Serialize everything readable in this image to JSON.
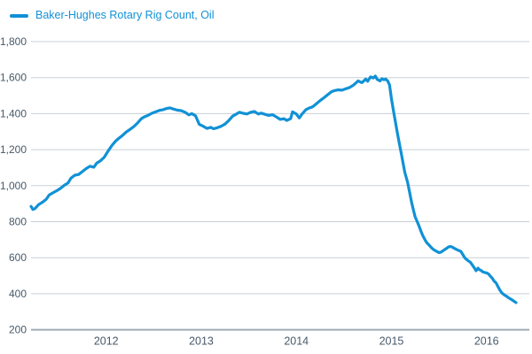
{
  "colors": {
    "series_blue": "#1191d6",
    "gridline": "#c9d0d6",
    "axis_line": "#9fabb4",
    "axis_text": "#47596a",
    "background": "#ffffff"
  },
  "legend": {
    "label": "Baker-Hughes Rotary Rig Count, Oil"
  },
  "chart_data": {
    "type": "line",
    "title": "Baker-Hughes Rotary Rig Count, Oil",
    "xlabel": "",
    "ylabel": "",
    "grid": "horizontal",
    "legend_position": "top-left",
    "x_ticks": [
      2012,
      2013,
      2014,
      2015,
      2016
    ],
    "y_ticks": [
      200,
      400,
      600,
      800,
      1000,
      1200,
      1400,
      1600,
      1800
    ],
    "ylim": [
      200,
      1800
    ],
    "xlim": [
      2011.21,
      2016.45
    ],
    "series": [
      {
        "name": "Baker-Hughes Rotary Rig Count, Oil",
        "color": "#1191d6",
        "points": [
          [
            2011.21,
            885
          ],
          [
            2011.23,
            868
          ],
          [
            2011.25,
            872
          ],
          [
            2011.29,
            895
          ],
          [
            2011.33,
            908
          ],
          [
            2011.37,
            925
          ],
          [
            2011.4,
            948
          ],
          [
            2011.44,
            960
          ],
          [
            2011.48,
            972
          ],
          [
            2011.52,
            985
          ],
          [
            2011.56,
            1002
          ],
          [
            2011.6,
            1015
          ],
          [
            2011.63,
            1042
          ],
          [
            2011.67,
            1058
          ],
          [
            2011.71,
            1062
          ],
          [
            2011.75,
            1078
          ],
          [
            2011.79,
            1095
          ],
          [
            2011.83,
            1108
          ],
          [
            2011.87,
            1102
          ],
          [
            2011.9,
            1125
          ],
          [
            2011.94,
            1138
          ],
          [
            2011.98,
            1158
          ],
          [
            2012.02,
            1192
          ],
          [
            2012.06,
            1223
          ],
          [
            2012.1,
            1248
          ],
          [
            2012.13,
            1262
          ],
          [
            2012.17,
            1278
          ],
          [
            2012.21,
            1298
          ],
          [
            2012.25,
            1312
          ],
          [
            2012.29,
            1328
          ],
          [
            2012.33,
            1348
          ],
          [
            2012.37,
            1372
          ],
          [
            2012.4,
            1382
          ],
          [
            2012.44,
            1390
          ],
          [
            2012.48,
            1402
          ],
          [
            2012.52,
            1410
          ],
          [
            2012.56,
            1418
          ],
          [
            2012.6,
            1422
          ],
          [
            2012.63,
            1428
          ],
          [
            2012.67,
            1432
          ],
          [
            2012.71,
            1425
          ],
          [
            2012.75,
            1419
          ],
          [
            2012.79,
            1416
          ],
          [
            2012.83,
            1408
          ],
          [
            2012.87,
            1393
          ],
          [
            2012.9,
            1400
          ],
          [
            2012.94,
            1388
          ],
          [
            2012.98,
            1340
          ],
          [
            2013.02,
            1330
          ],
          [
            2013.06,
            1318
          ],
          [
            2013.1,
            1324
          ],
          [
            2013.13,
            1316
          ],
          [
            2013.17,
            1322
          ],
          [
            2013.21,
            1330
          ],
          [
            2013.25,
            1342
          ],
          [
            2013.29,
            1362
          ],
          [
            2013.33,
            1386
          ],
          [
            2013.37,
            1398
          ],
          [
            2013.4,
            1408
          ],
          [
            2013.44,
            1402
          ],
          [
            2013.48,
            1398
          ],
          [
            2013.52,
            1408
          ],
          [
            2013.56,
            1412
          ],
          [
            2013.6,
            1398
          ],
          [
            2013.63,
            1403
          ],
          [
            2013.67,
            1396
          ],
          [
            2013.71,
            1390
          ],
          [
            2013.75,
            1394
          ],
          [
            2013.79,
            1382
          ],
          [
            2013.83,
            1368
          ],
          [
            2013.87,
            1372
          ],
          [
            2013.9,
            1362
          ],
          [
            2013.94,
            1372
          ],
          [
            2013.96,
            1410
          ],
          [
            2014.0,
            1398
          ],
          [
            2014.03,
            1376
          ],
          [
            2014.06,
            1398
          ],
          [
            2014.1,
            1422
          ],
          [
            2014.13,
            1430
          ],
          [
            2014.17,
            1438
          ],
          [
            2014.21,
            1455
          ],
          [
            2014.25,
            1472
          ],
          [
            2014.29,
            1488
          ],
          [
            2014.33,
            1505
          ],
          [
            2014.37,
            1522
          ],
          [
            2014.4,
            1528
          ],
          [
            2014.44,
            1532
          ],
          [
            2014.48,
            1530
          ],
          [
            2014.52,
            1538
          ],
          [
            2014.56,
            1545
          ],
          [
            2014.6,
            1558
          ],
          [
            2014.63,
            1572
          ],
          [
            2014.65,
            1582
          ],
          [
            2014.69,
            1572
          ],
          [
            2014.73,
            1592
          ],
          [
            2014.75,
            1580
          ],
          [
            2014.78,
            1604
          ],
          [
            2014.81,
            1598
          ],
          [
            2014.83,
            1609
          ],
          [
            2014.85,
            1590
          ],
          [
            2014.88,
            1582
          ],
          [
            2014.9,
            1594
          ],
          [
            2014.92,
            1588
          ],
          [
            2014.94,
            1592
          ],
          [
            2014.96,
            1582
          ],
          [
            2014.98,
            1560
          ],
          [
            2015.0,
            1482
          ],
          [
            2015.02,
            1420
          ],
          [
            2015.04,
            1358
          ],
          [
            2015.06,
            1300
          ],
          [
            2015.08,
            1242
          ],
          [
            2015.1,
            1188
          ],
          [
            2015.12,
            1130
          ],
          [
            2015.14,
            1075
          ],
          [
            2015.17,
            1018
          ],
          [
            2015.19,
            965
          ],
          [
            2015.21,
            912
          ],
          [
            2015.23,
            866
          ],
          [
            2015.25,
            825
          ],
          [
            2015.27,
            802
          ],
          [
            2015.29,
            776
          ],
          [
            2015.31,
            748
          ],
          [
            2015.33,
            722
          ],
          [
            2015.35,
            702
          ],
          [
            2015.37,
            684
          ],
          [
            2015.4,
            668
          ],
          [
            2015.42,
            656
          ],
          [
            2015.44,
            646
          ],
          [
            2015.46,
            640
          ],
          [
            2015.48,
            634
          ],
          [
            2015.5,
            628
          ],
          [
            2015.52,
            631
          ],
          [
            2015.54,
            638
          ],
          [
            2015.56,
            645
          ],
          [
            2015.58,
            652
          ],
          [
            2015.6,
            660
          ],
          [
            2015.62,
            662
          ],
          [
            2015.64,
            659
          ],
          [
            2015.66,
            652
          ],
          [
            2015.69,
            644
          ],
          [
            2015.71,
            640
          ],
          [
            2015.73,
            635
          ],
          [
            2015.75,
            618
          ],
          [
            2015.77,
            600
          ],
          [
            2015.79,
            590
          ],
          [
            2015.81,
            582
          ],
          [
            2015.83,
            575
          ],
          [
            2015.85,
            560
          ],
          [
            2015.87,
            545
          ],
          [
            2015.89,
            528
          ],
          [
            2015.91,
            542
          ],
          [
            2015.92,
            535
          ],
          [
            2015.94,
            530
          ],
          [
            2015.96,
            522
          ],
          [
            2015.98,
            518
          ],
          [
            2016.0,
            516
          ],
          [
            2016.02,
            510
          ],
          [
            2016.04,
            498
          ],
          [
            2016.06,
            486
          ],
          [
            2016.08,
            470
          ],
          [
            2016.1,
            460
          ],
          [
            2016.12,
            440
          ],
          [
            2016.14,
            420
          ],
          [
            2016.16,
            405
          ],
          [
            2016.19,
            392
          ],
          [
            2016.21,
            386
          ],
          [
            2016.23,
            378
          ],
          [
            2016.25,
            372
          ],
          [
            2016.27,
            365
          ],
          [
            2016.29,
            358
          ],
          [
            2016.31,
            351
          ]
        ]
      }
    ]
  }
}
